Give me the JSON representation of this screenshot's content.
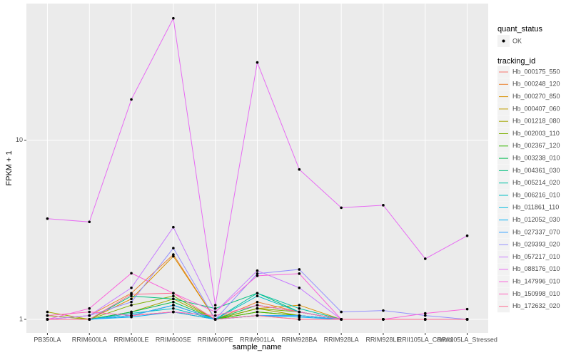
{
  "chart_data": {
    "type": "line",
    "y_label": "FPKM + 1",
    "x_label": "sample_name",
    "log_scale_y": true,
    "grid": true,
    "categories": [
      "PB350LA",
      "RRIM600LA",
      "RRIM600LE",
      "RRIM600SE",
      "RRIM600PE",
      "RRIM901LA",
      "RRIM928BA",
      "RRIM928LA",
      "RRIM928LE",
      "RRII105LA_Control",
      "RRII105LA_Stressed"
    ],
    "ylim": [
      0.84,
      58
    ],
    "yticks": [
      1,
      10
    ],
    "shape_legend_title": "quant_status",
    "shape_legend_entry": "OK",
    "legend_title": "tracking_id",
    "legend_position": "right",
    "series": [
      {
        "name": "Hb_000175_550",
        "color": "#F8766D",
        "values": [
          1,
          1,
          1.05,
          1.1,
          1,
          1.05,
          1,
          1,
          1,
          1,
          1
        ]
      },
      {
        "name": "Hb_000248_120",
        "color": "#EA8331",
        "values": [
          1,
          1.05,
          1.4,
          2.3,
          1,
          1.25,
          1.1,
          1,
          1,
          1,
          1
        ]
      },
      {
        "name": "Hb_000270_850",
        "color": "#D89000",
        "values": [
          1,
          1,
          1.3,
          2.25,
          1,
          1.15,
          1.2,
          1,
          1,
          1,
          1
        ]
      },
      {
        "name": "Hb_000407_060",
        "color": "#C09B00",
        "values": [
          1,
          1,
          1.05,
          1.1,
          1,
          1.1,
          1.05,
          1,
          1,
          1,
          1
        ]
      },
      {
        "name": "Hb_001218_080",
        "color": "#A3A500",
        "values": [
          1.1,
          1,
          1.1,
          1.3,
          1,
          1.15,
          1.05,
          1,
          1,
          1,
          1
        ]
      },
      {
        "name": "Hb_002003_110",
        "color": "#7CAE00",
        "values": [
          1.05,
          1,
          1.2,
          1.35,
          1,
          1.15,
          1.1,
          1,
          1,
          1,
          1
        ]
      },
      {
        "name": "Hb_002367_120",
        "color": "#39B600",
        "values": [
          1,
          1,
          1.05,
          1.2,
          1,
          1.1,
          1.05,
          1,
          1,
          1,
          1
        ]
      },
      {
        "name": "Hb_003238_010",
        "color": "#00BB4E",
        "values": [
          1,
          1,
          1.1,
          1.25,
          1,
          1.2,
          1.1,
          1,
          1,
          1,
          1
        ]
      },
      {
        "name": "Hb_004361_030",
        "color": "#00BF7D",
        "values": [
          1,
          1,
          1.35,
          1.3,
          1.15,
          1.4,
          1.1,
          1,
          1,
          1,
          1
        ]
      },
      {
        "name": "Hb_005214_020",
        "color": "#00C1A3",
        "values": [
          1,
          1,
          1.05,
          1.2,
          1,
          1.4,
          1.15,
          1,
          1,
          1,
          1
        ]
      },
      {
        "name": "Hb_006216_010",
        "color": "#00BFC4",
        "values": [
          1,
          1,
          1.08,
          1.15,
          1,
          1.35,
          1.1,
          1,
          1,
          1,
          1
        ]
      },
      {
        "name": "Hb_011861_110",
        "color": "#00BAE0",
        "values": [
          1,
          1,
          1.05,
          1.2,
          1,
          1.05,
          1.05,
          1,
          1,
          1,
          1
        ]
      },
      {
        "name": "Hb_012052_030",
        "color": "#00B0F6",
        "values": [
          1,
          1,
          1.03,
          1.1,
          1,
          1.05,
          1.03,
          1,
          1,
          1,
          1
        ]
      },
      {
        "name": "Hb_027337_070",
        "color": "#35A2FF",
        "values": [
          1,
          1,
          1.05,
          1.2,
          1,
          1.05,
          1.05,
          1,
          1,
          1,
          1
        ]
      },
      {
        "name": "Hb_029393_020",
        "color": "#9590FF",
        "values": [
          1,
          1.05,
          1.25,
          2.5,
          1,
          1.8,
          1.9,
          1.1,
          1.12,
          1.05,
          1
        ]
      },
      {
        "name": "Hb_057217_010",
        "color": "#C77CFF",
        "values": [
          1,
          1.05,
          1.5,
          3.27,
          1.1,
          1.87,
          1.5,
          1,
          1,
          1,
          1
        ]
      },
      {
        "name": "Hb_088176_010",
        "color": "#E76BF3",
        "values": [
          3.65,
          3.5,
          16.9,
          48,
          1.2,
          27.2,
          6.87,
          4.2,
          4.34,
          2.18,
          2.93
        ]
      },
      {
        "name": "Hb_147996_010",
        "color": "#FA62DB",
        "values": [
          1,
          1.15,
          1.81,
          1.4,
          1.1,
          1.75,
          1.8,
          1,
          1,
          1.08,
          1.14
        ]
      },
      {
        "name": "Hb_150998_010",
        "color": "#FF62BC",
        "values": [
          1.05,
          1.1,
          1.05,
          1.1,
          1.05,
          1.2,
          1.1,
          1,
          1,
          1,
          1
        ]
      },
      {
        "name": "Hb_172632_020",
        "color": "#FF6C91",
        "values": [
          1,
          1,
          1.38,
          1.4,
          1,
          1.05,
          1,
          1,
          1,
          1,
          1
        ]
      }
    ]
  }
}
